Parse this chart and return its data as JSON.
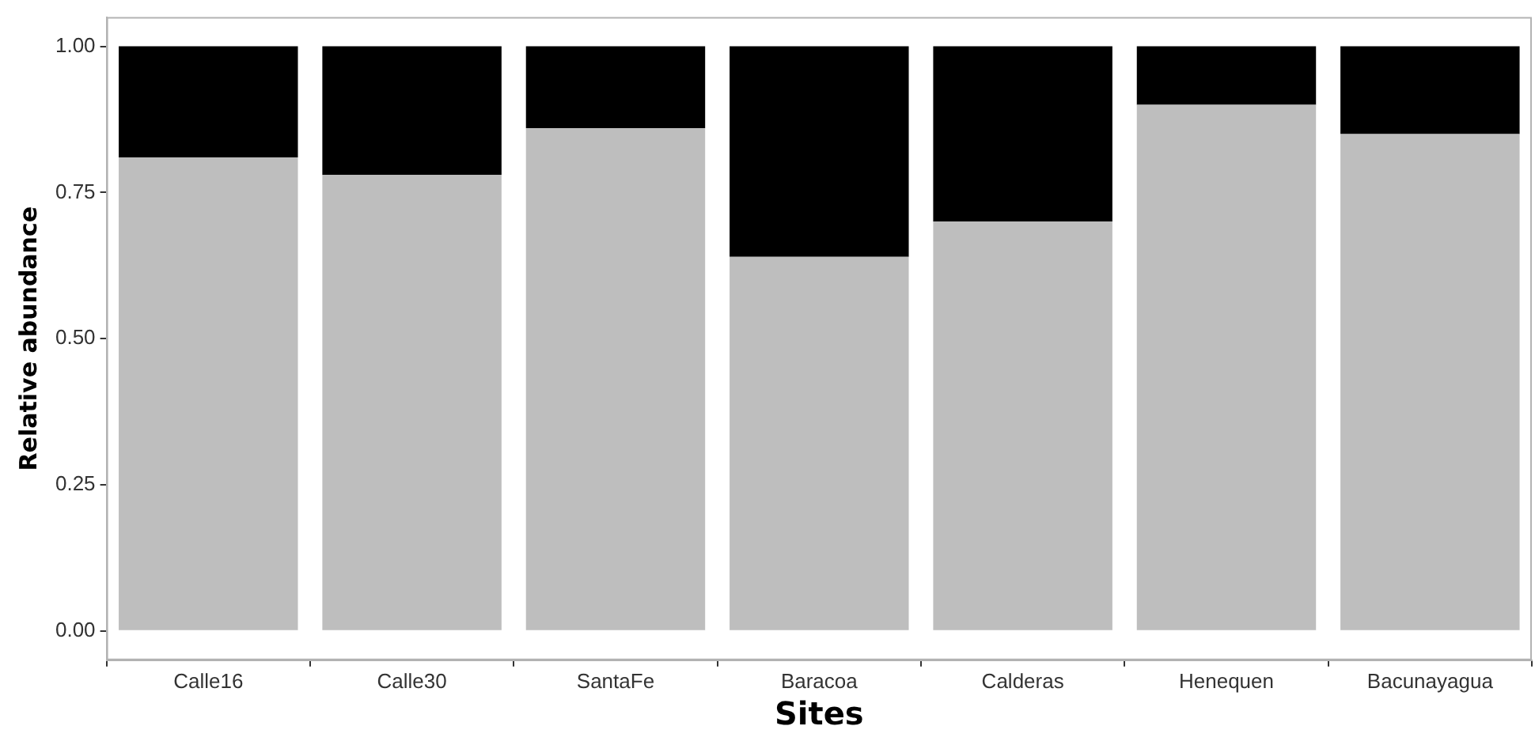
{
  "chart_data": {
    "type": "bar",
    "stacked": true,
    "xlabel": "Sites",
    "ylabel": "Relative abundance",
    "categories": [
      "Calle16",
      "Calle30",
      "SantaFe",
      "Baracoa",
      "Calderas",
      "Henequen",
      "Bacunayagua"
    ],
    "series": [
      {
        "color": "#bebebe",
        "values": [
          0.81,
          0.78,
          0.86,
          0.64,
          0.7,
          0.9,
          0.85
        ]
      },
      {
        "color": "#000000",
        "values": [
          0.19,
          0.22,
          0.14,
          0.36,
          0.3,
          0.1,
          0.15
        ]
      }
    ],
    "ylim": [
      -0.05,
      1.05
    ],
    "yticks": [
      {
        "value": 0,
        "label": "0.00"
      },
      {
        "value": 0.25,
        "label": "0.25"
      },
      {
        "value": 0.5,
        "label": "0.50"
      },
      {
        "value": 0.75,
        "label": "0.75"
      },
      {
        "value": 1,
        "label": "1.00"
      }
    ],
    "grid": false,
    "legend": false
  }
}
